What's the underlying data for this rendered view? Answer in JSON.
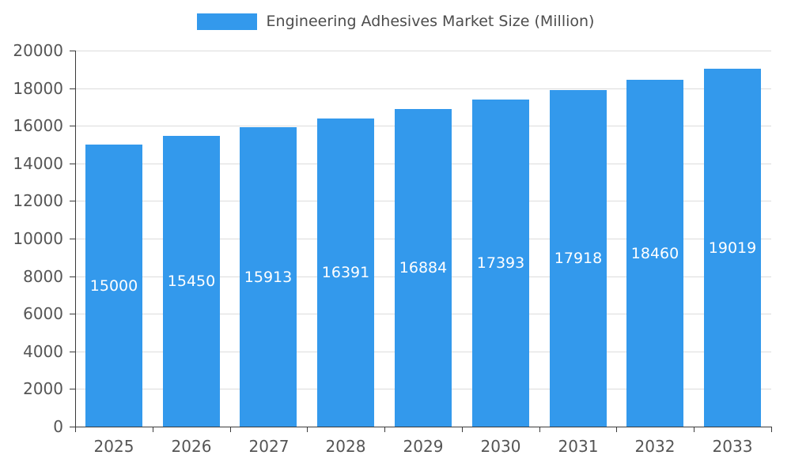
{
  "chart_data": {
    "type": "bar",
    "title": "Engineering Adhesives Market Size (Million)",
    "categories": [
      "2025",
      "2026",
      "2027",
      "2028",
      "2029",
      "2030",
      "2031",
      "2032",
      "2033"
    ],
    "values": [
      15000,
      15450,
      15913,
      16391,
      16884,
      17393,
      17918,
      18460,
      19019
    ],
    "xlabel": "",
    "ylabel": "",
    "ylim": [
      0,
      20000
    ],
    "ytick_step": 2000,
    "grid": true,
    "legend_position": "top",
    "bar_color": "#3399EC",
    "bar_label_color": "#FFFFFF",
    "axis_text_color": "#555555",
    "grid_color": "#DCDCDC",
    "axis_line_color": "#3B3B3B"
  }
}
